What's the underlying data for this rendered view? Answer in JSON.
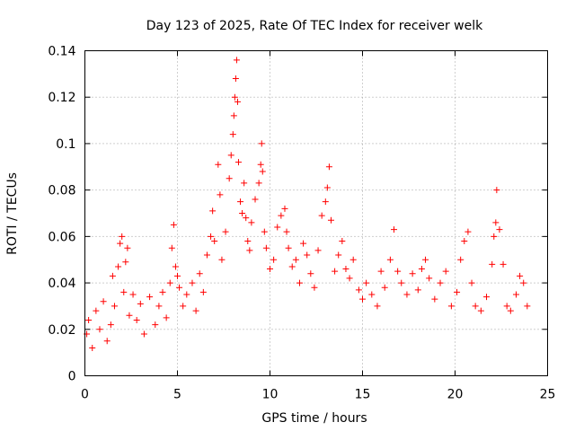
{
  "chart_data": {
    "type": "scatter",
    "title": "Day 123 of 2025, Rate Of TEC Index for receiver welk",
    "xlabel": "GPS time / hours",
    "ylabel": "ROTI / TECUs",
    "xlim": [
      0,
      25
    ],
    "ylim": [
      0,
      0.14
    ],
    "xticks": [
      0,
      5,
      10,
      15,
      20,
      25
    ],
    "xtick_labels": [
      "0",
      "5",
      "10",
      "15",
      "20",
      "25"
    ],
    "yticks": [
      0,
      0.02,
      0.04,
      0.06,
      0.08,
      0.1,
      0.12,
      0.14
    ],
    "ytick_labels": [
      "0",
      "0.02",
      "0.04",
      "0.06",
      "0.08",
      "0.1",
      "0.12",
      "0.14"
    ],
    "grid": true,
    "marker": "plus",
    "color": "#ff0000",
    "series": [
      {
        "points": [
          [
            0.1,
            0.018
          ],
          [
            0.2,
            0.024
          ],
          [
            0.4,
            0.012
          ],
          [
            0.6,
            0.028
          ],
          [
            0.8,
            0.02
          ],
          [
            1.0,
            0.032
          ],
          [
            1.2,
            0.015
          ],
          [
            1.4,
            0.022
          ],
          [
            1.5,
            0.043
          ],
          [
            1.6,
            0.03
          ],
          [
            1.8,
            0.047
          ],
          [
            1.9,
            0.057
          ],
          [
            2.0,
            0.06
          ],
          [
            2.1,
            0.036
          ],
          [
            2.2,
            0.049
          ],
          [
            2.3,
            0.055
          ],
          [
            2.4,
            0.026
          ],
          [
            2.6,
            0.035
          ],
          [
            2.8,
            0.024
          ],
          [
            3.0,
            0.031
          ],
          [
            3.2,
            0.018
          ],
          [
            3.5,
            0.034
          ],
          [
            3.8,
            0.022
          ],
          [
            4.0,
            0.03
          ],
          [
            4.2,
            0.036
          ],
          [
            4.4,
            0.025
          ],
          [
            4.6,
            0.04
          ],
          [
            4.7,
            0.055
          ],
          [
            4.8,
            0.065
          ],
          [
            4.9,
            0.047
          ],
          [
            5.0,
            0.043
          ],
          [
            5.1,
            0.038
          ],
          [
            5.3,
            0.03
          ],
          [
            5.5,
            0.035
          ],
          [
            5.8,
            0.04
          ],
          [
            6.0,
            0.028
          ],
          [
            6.2,
            0.044
          ],
          [
            6.4,
            0.036
          ],
          [
            6.6,
            0.052
          ],
          [
            6.8,
            0.06
          ],
          [
            6.9,
            0.071
          ],
          [
            7.0,
            0.058
          ],
          [
            7.2,
            0.091
          ],
          [
            7.3,
            0.078
          ],
          [
            7.4,
            0.05
          ],
          [
            7.6,
            0.062
          ],
          [
            7.8,
            0.085
          ],
          [
            7.9,
            0.095
          ],
          [
            8.0,
            0.104
          ],
          [
            8.05,
            0.112
          ],
          [
            8.1,
            0.12
          ],
          [
            8.15,
            0.128
          ],
          [
            8.2,
            0.136
          ],
          [
            8.25,
            0.118
          ],
          [
            8.3,
            0.092
          ],
          [
            8.4,
            0.075
          ],
          [
            8.5,
            0.07
          ],
          [
            8.6,
            0.083
          ],
          [
            8.7,
            0.068
          ],
          [
            8.8,
            0.058
          ],
          [
            8.9,
            0.054
          ],
          [
            9.0,
            0.066
          ],
          [
            9.2,
            0.076
          ],
          [
            9.4,
            0.083
          ],
          [
            9.5,
            0.091
          ],
          [
            9.55,
            0.1
          ],
          [
            9.6,
            0.088
          ],
          [
            9.7,
            0.062
          ],
          [
            9.8,
            0.055
          ],
          [
            10.0,
            0.046
          ],
          [
            10.2,
            0.05
          ],
          [
            10.4,
            0.064
          ],
          [
            10.6,
            0.069
          ],
          [
            10.8,
            0.072
          ],
          [
            10.9,
            0.062
          ],
          [
            11.0,
            0.055
          ],
          [
            11.2,
            0.047
          ],
          [
            11.4,
            0.05
          ],
          [
            11.6,
            0.04
          ],
          [
            11.8,
            0.057
          ],
          [
            12.0,
            0.052
          ],
          [
            12.2,
            0.044
          ],
          [
            12.4,
            0.038
          ],
          [
            12.6,
            0.054
          ],
          [
            12.8,
            0.069
          ],
          [
            13.0,
            0.075
          ],
          [
            13.1,
            0.081
          ],
          [
            13.2,
            0.09
          ],
          [
            13.3,
            0.067
          ],
          [
            13.5,
            0.045
          ],
          [
            13.7,
            0.052
          ],
          [
            13.9,
            0.058
          ],
          [
            14.1,
            0.046
          ],
          [
            14.3,
            0.042
          ],
          [
            14.5,
            0.05
          ],
          [
            14.8,
            0.037
          ],
          [
            15.0,
            0.033
          ],
          [
            15.2,
            0.04
          ],
          [
            15.5,
            0.035
          ],
          [
            15.8,
            0.03
          ],
          [
            16.0,
            0.045
          ],
          [
            16.2,
            0.038
          ],
          [
            16.5,
            0.05
          ],
          [
            16.7,
            0.063
          ],
          [
            16.9,
            0.045
          ],
          [
            17.1,
            0.04
          ],
          [
            17.4,
            0.035
          ],
          [
            17.7,
            0.044
          ],
          [
            18.0,
            0.037
          ],
          [
            18.2,
            0.046
          ],
          [
            18.4,
            0.05
          ],
          [
            18.6,
            0.042
          ],
          [
            18.9,
            0.033
          ],
          [
            19.2,
            0.04
          ],
          [
            19.5,
            0.045
          ],
          [
            19.8,
            0.03
          ],
          [
            20.1,
            0.036
          ],
          [
            20.3,
            0.05
          ],
          [
            20.5,
            0.058
          ],
          [
            20.7,
            0.062
          ],
          [
            20.9,
            0.04
          ],
          [
            21.1,
            0.03
          ],
          [
            21.4,
            0.028
          ],
          [
            21.7,
            0.034
          ],
          [
            22.0,
            0.048
          ],
          [
            22.1,
            0.06
          ],
          [
            22.2,
            0.066
          ],
          [
            22.25,
            0.08
          ],
          [
            22.4,
            0.063
          ],
          [
            22.6,
            0.048
          ],
          [
            22.8,
            0.03
          ],
          [
            23.0,
            0.028
          ],
          [
            23.3,
            0.035
          ],
          [
            23.5,
            0.043
          ],
          [
            23.7,
            0.04
          ],
          [
            23.9,
            0.03
          ]
        ]
      }
    ]
  }
}
